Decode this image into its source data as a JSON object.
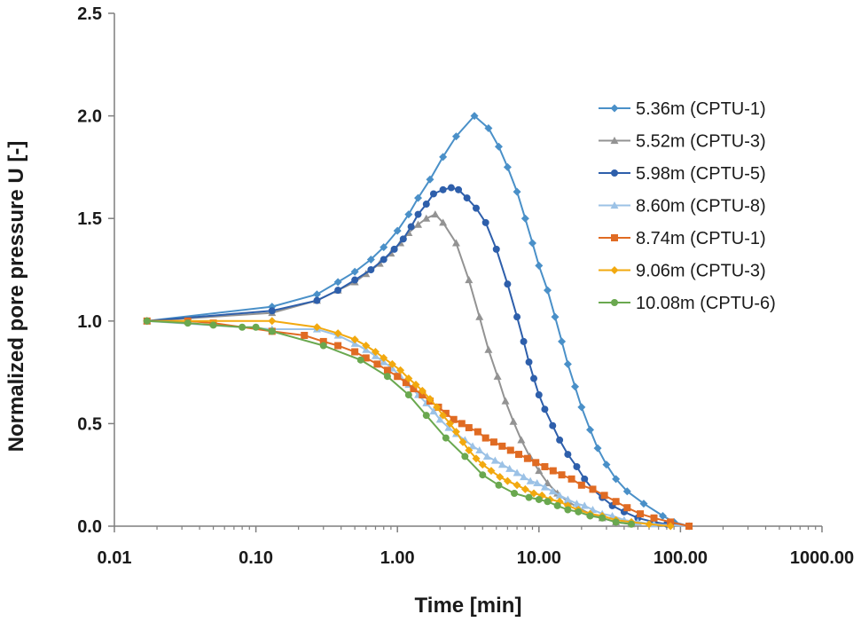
{
  "chart_data": {
    "type": "line",
    "xscale": "log",
    "title": "",
    "xlabel": "Time [min]",
    "ylabel": "Normalized pore pressure U [-]",
    "xlim": [
      0.01,
      1000
    ],
    "ylim": [
      0,
      2.5
    ],
    "x_ticks": [
      0.01,
      0.1,
      1,
      10,
      100,
      1000
    ],
    "x_tick_labels": [
      "0.01",
      "0.10",
      "1.00",
      "10.00",
      "100.00",
      "1000.00"
    ],
    "y_ticks": [
      0,
      0.5,
      1,
      1.5,
      2,
      2.5
    ],
    "y_tick_labels": [
      "0.0",
      "0.5",
      "1.0",
      "1.5",
      "2.0",
      "2.5"
    ],
    "grid": false,
    "legend_position": "right",
    "series": [
      {
        "name": "5.36m (CPTU-1)",
        "color": "#4a90c8",
        "marker": "diamond",
        "points": [
          [
            0.017,
            1.0
          ],
          [
            0.13,
            1.07
          ],
          [
            0.27,
            1.13
          ],
          [
            0.38,
            1.19
          ],
          [
            0.5,
            1.24
          ],
          [
            0.65,
            1.3
          ],
          [
            0.8,
            1.36
          ],
          [
            1.0,
            1.44
          ],
          [
            1.2,
            1.52
          ],
          [
            1.4,
            1.6
          ],
          [
            1.7,
            1.69
          ],
          [
            2.1,
            1.8
          ],
          [
            2.6,
            1.9
          ],
          [
            3.5,
            2.0
          ],
          [
            4.4,
            1.94
          ],
          [
            5.2,
            1.85
          ],
          [
            6.0,
            1.75
          ],
          [
            7.0,
            1.63
          ],
          [
            8.0,
            1.5
          ],
          [
            9.0,
            1.38
          ],
          [
            10.0,
            1.27
          ],
          [
            11.5,
            1.15
          ],
          [
            13.0,
            1.02
          ],
          [
            14.5,
            0.9
          ],
          [
            16.0,
            0.79
          ],
          [
            18.0,
            0.68
          ],
          [
            20.0,
            0.58
          ],
          [
            23.0,
            0.47
          ],
          [
            26.0,
            0.38
          ],
          [
            30.0,
            0.3
          ],
          [
            35.0,
            0.23
          ],
          [
            42.0,
            0.17
          ],
          [
            55.0,
            0.11
          ],
          [
            75.0,
            0.05
          ],
          [
            90.0,
            0.02
          ],
          [
            115.0,
            0.0
          ]
        ]
      },
      {
        "name": "5.52m (CPTU-3)",
        "color": "#939393",
        "marker": "triangle",
        "points": [
          [
            0.017,
            1.0
          ],
          [
            0.13,
            1.04
          ],
          [
            0.27,
            1.1
          ],
          [
            0.38,
            1.15
          ],
          [
            0.5,
            1.19
          ],
          [
            0.6,
            1.23
          ],
          [
            0.75,
            1.28
          ],
          [
            0.9,
            1.33
          ],
          [
            1.05,
            1.38
          ],
          [
            1.2,
            1.43
          ],
          [
            1.4,
            1.47
          ],
          [
            1.6,
            1.5
          ],
          [
            1.85,
            1.52
          ],
          [
            2.1,
            1.48
          ],
          [
            2.6,
            1.38
          ],
          [
            3.2,
            1.2
          ],
          [
            3.8,
            1.02
          ],
          [
            4.4,
            0.86
          ],
          [
            5.1,
            0.73
          ],
          [
            5.8,
            0.61
          ],
          [
            6.6,
            0.51
          ],
          [
            7.5,
            0.42
          ],
          [
            8.6,
            0.34
          ],
          [
            10.0,
            0.27
          ],
          [
            11.5,
            0.21
          ],
          [
            13.5,
            0.16
          ],
          [
            16.0,
            0.12
          ],
          [
            19.0,
            0.09
          ],
          [
            23.0,
            0.06
          ],
          [
            28.0,
            0.04
          ],
          [
            35.0,
            0.02
          ],
          [
            45.0,
            0.01
          ]
        ]
      },
      {
        "name": "5.98m (CPTU-5)",
        "color": "#2e5fab",
        "marker": "circle",
        "points": [
          [
            0.017,
            1.0
          ],
          [
            0.13,
            1.05
          ],
          [
            0.27,
            1.1
          ],
          [
            0.38,
            1.15
          ],
          [
            0.5,
            1.2
          ],
          [
            0.65,
            1.25
          ],
          [
            0.8,
            1.3
          ],
          [
            0.95,
            1.35
          ],
          [
            1.1,
            1.4
          ],
          [
            1.25,
            1.46
          ],
          [
            1.4,
            1.52
          ],
          [
            1.6,
            1.57
          ],
          [
            1.8,
            1.62
          ],
          [
            2.1,
            1.64
          ],
          [
            2.4,
            1.65
          ],
          [
            2.7,
            1.64
          ],
          [
            3.1,
            1.6
          ],
          [
            3.6,
            1.55
          ],
          [
            4.2,
            1.48
          ],
          [
            5.0,
            1.35
          ],
          [
            6.0,
            1.18
          ],
          [
            7.0,
            1.02
          ],
          [
            7.8,
            0.9
          ],
          [
            8.5,
            0.8
          ],
          [
            9.2,
            0.72
          ],
          [
            10.0,
            0.64
          ],
          [
            11.0,
            0.57
          ],
          [
            12.5,
            0.49
          ],
          [
            14.0,
            0.42
          ],
          [
            16.0,
            0.35
          ],
          [
            18.5,
            0.29
          ],
          [
            21.0,
            0.23
          ],
          [
            24.0,
            0.18
          ],
          [
            28.0,
            0.14
          ],
          [
            33.0,
            0.1
          ],
          [
            40.0,
            0.07
          ],
          [
            50.0,
            0.04
          ],
          [
            65.0,
            0.02
          ],
          [
            80.0,
            0.01
          ],
          [
            115.0,
            0.0
          ]
        ]
      },
      {
        "name": "8.60m (CPTU-8)",
        "color": "#9cc2e6",
        "marker": "triangle",
        "points": [
          [
            0.017,
            1.0
          ],
          [
            0.13,
            0.96
          ],
          [
            0.27,
            0.96
          ],
          [
            0.38,
            0.93
          ],
          [
            0.5,
            0.89
          ],
          [
            0.6,
            0.86
          ],
          [
            0.7,
            0.83
          ],
          [
            0.8,
            0.8
          ],
          [
            0.92,
            0.77
          ],
          [
            1.05,
            0.73
          ],
          [
            1.2,
            0.69
          ],
          [
            1.4,
            0.64
          ],
          [
            1.6,
            0.6
          ],
          [
            1.8,
            0.56
          ],
          [
            2.0,
            0.52
          ],
          [
            2.3,
            0.48
          ],
          [
            2.6,
            0.45
          ],
          [
            3.0,
            0.42
          ],
          [
            3.4,
            0.39
          ],
          [
            3.8,
            0.37
          ],
          [
            4.3,
            0.34
          ],
          [
            4.9,
            0.32
          ],
          [
            5.5,
            0.3
          ],
          [
            6.2,
            0.28
          ],
          [
            7.0,
            0.26
          ],
          [
            7.8,
            0.24
          ],
          [
            8.7,
            0.22
          ],
          [
            9.7,
            0.21
          ],
          [
            11.0,
            0.19
          ],
          [
            12.5,
            0.17
          ],
          [
            14.0,
            0.15
          ],
          [
            16.0,
            0.13
          ],
          [
            18.5,
            0.11
          ],
          [
            21.0,
            0.1
          ],
          [
            24.0,
            0.08
          ],
          [
            28.0,
            0.06
          ],
          [
            33.0,
            0.05
          ],
          [
            40.0,
            0.03
          ],
          [
            50.0,
            0.02
          ],
          [
            65.0,
            0.01
          ],
          [
            115.0,
            0.0
          ]
        ]
      },
      {
        "name": "8.74m (CPTU-1)",
        "color": "#e06b23",
        "marker": "square",
        "points": [
          [
            0.017,
            1.0
          ],
          [
            0.033,
            1.0
          ],
          [
            0.05,
            0.99
          ],
          [
            0.13,
            0.95
          ],
          [
            0.22,
            0.93
          ],
          [
            0.3,
            0.9
          ],
          [
            0.38,
            0.88
          ],
          [
            0.5,
            0.85
          ],
          [
            0.6,
            0.82
          ],
          [
            0.72,
            0.79
          ],
          [
            0.85,
            0.76
          ],
          [
            1.0,
            0.73
          ],
          [
            1.15,
            0.7
          ],
          [
            1.3,
            0.67
          ],
          [
            1.5,
            0.64
          ],
          [
            1.7,
            0.61
          ],
          [
            1.95,
            0.58
          ],
          [
            2.2,
            0.55
          ],
          [
            2.5,
            0.52
          ],
          [
            2.85,
            0.5
          ],
          [
            3.2,
            0.48
          ],
          [
            3.7,
            0.46
          ],
          [
            4.2,
            0.43
          ],
          [
            4.8,
            0.41
          ],
          [
            5.5,
            0.39
          ],
          [
            6.3,
            0.37
          ],
          [
            7.2,
            0.35
          ],
          [
            8.3,
            0.33
          ],
          [
            9.5,
            0.31
          ],
          [
            11.0,
            0.29
          ],
          [
            12.6,
            0.27
          ],
          [
            14.5,
            0.25
          ],
          [
            17.0,
            0.23
          ],
          [
            20.0,
            0.2
          ],
          [
            24.0,
            0.18
          ],
          [
            29.0,
            0.15
          ],
          [
            35.0,
            0.12
          ],
          [
            42.0,
            0.09
          ],
          [
            52.0,
            0.06
          ],
          [
            65.0,
            0.04
          ],
          [
            85.0,
            0.02
          ],
          [
            115.0,
            0.0
          ]
        ]
      },
      {
        "name": "9.06m (CPTU-3)",
        "color": "#f2a90f",
        "marker": "diamond",
        "points": [
          [
            0.017,
            1.0
          ],
          [
            0.13,
            1.0
          ],
          [
            0.27,
            0.97
          ],
          [
            0.38,
            0.94
          ],
          [
            0.5,
            0.91
          ],
          [
            0.6,
            0.88
          ],
          [
            0.7,
            0.85
          ],
          [
            0.8,
            0.82
          ],
          [
            0.92,
            0.79
          ],
          [
            1.05,
            0.76
          ],
          [
            1.2,
            0.72
          ],
          [
            1.35,
            0.69
          ],
          [
            1.5,
            0.66
          ],
          [
            1.7,
            0.62
          ],
          [
            1.9,
            0.58
          ],
          [
            2.1,
            0.54
          ],
          [
            2.35,
            0.5
          ],
          [
            2.6,
            0.46
          ],
          [
            2.9,
            0.41
          ],
          [
            3.2,
            0.37
          ],
          [
            3.6,
            0.33
          ],
          [
            4.0,
            0.3
          ],
          [
            4.6,
            0.27
          ],
          [
            5.3,
            0.24
          ],
          [
            6.0,
            0.22
          ],
          [
            7.0,
            0.2
          ],
          [
            8.0,
            0.18
          ],
          [
            9.2,
            0.16
          ],
          [
            10.5,
            0.15
          ],
          [
            12.0,
            0.13
          ],
          [
            14.0,
            0.12
          ],
          [
            16.0,
            0.1
          ],
          [
            19.0,
            0.08
          ],
          [
            23.0,
            0.06
          ],
          [
            28.0,
            0.05
          ],
          [
            35.0,
            0.03
          ],
          [
            45.0,
            0.02
          ],
          [
            60.0,
            0.01
          ],
          [
            85.0,
            0.0
          ]
        ]
      },
      {
        "name": "10.08m (CPTU-6)",
        "color": "#6aa84f",
        "marker": "circle",
        "points": [
          [
            0.017,
            1.0
          ],
          [
            0.033,
            0.99
          ],
          [
            0.05,
            0.98
          ],
          [
            0.08,
            0.97
          ],
          [
            0.1,
            0.97
          ],
          [
            0.13,
            0.95
          ],
          [
            0.3,
            0.88
          ],
          [
            0.55,
            0.81
          ],
          [
            0.85,
            0.73
          ],
          [
            1.2,
            0.64
          ],
          [
            1.6,
            0.54
          ],
          [
            2.2,
            0.43
          ],
          [
            3.0,
            0.34
          ],
          [
            4.0,
            0.25
          ],
          [
            5.2,
            0.2
          ],
          [
            6.7,
            0.16
          ],
          [
            8.5,
            0.14
          ],
          [
            10.0,
            0.13
          ],
          [
            11.5,
            0.12
          ],
          [
            13.5,
            0.1
          ],
          [
            16.0,
            0.08
          ],
          [
            19.0,
            0.07
          ],
          [
            23.0,
            0.05
          ],
          [
            28.0,
            0.04
          ],
          [
            35.0,
            0.02
          ],
          [
            45.0,
            0.01
          ]
        ]
      }
    ]
  }
}
